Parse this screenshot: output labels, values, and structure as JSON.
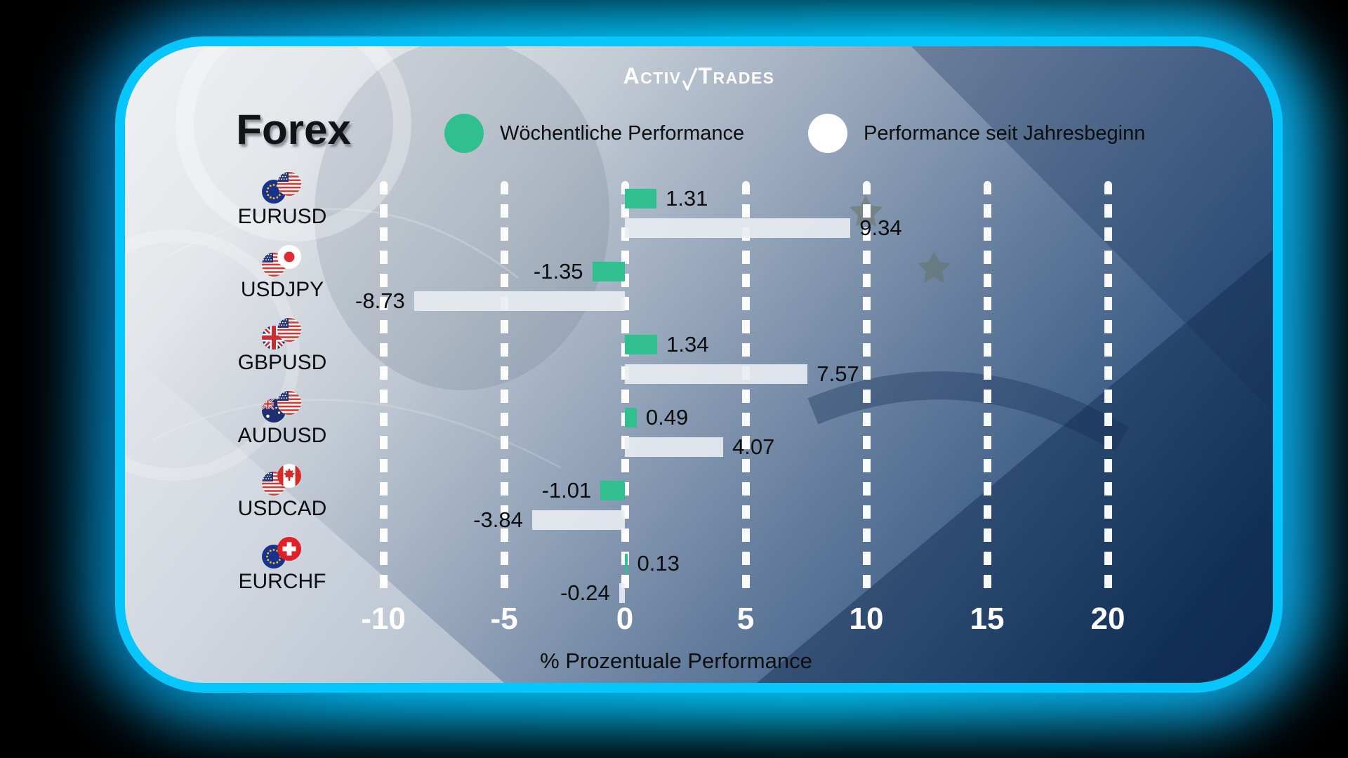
{
  "brand": {
    "word1": "ACTIV",
    "word2": "TRADES",
    "check_color": "#ffffff"
  },
  "title": "Forex",
  "legend": [
    {
      "label": "Wöchentliche Performance",
      "color": "#30bf8f"
    },
    {
      "label": "Performance seit Jahresbeginn",
      "color": "#ffffff"
    }
  ],
  "chart_data": {
    "type": "bar",
    "orientation": "horizontal",
    "title": "Forex",
    "categories": [
      "EURUSD",
      "USDJPY",
      "GBPUSD",
      "AUDUSD",
      "USDCAD",
      "EURCHF"
    ],
    "series": [
      {
        "name": "Wöchentliche Performance",
        "color": "#30bf8f",
        "values": [
          1.31,
          -1.35,
          1.34,
          0.49,
          -1.01,
          0.13
        ]
      },
      {
        "name": "Performance seit Jahresbeginn",
        "color": "#e9edf2",
        "values": [
          9.34,
          -8.73,
          7.57,
          4.07,
          -3.84,
          -0.24
        ]
      }
    ],
    "value_labels": [
      [
        "1.31",
        "-1.35",
        "1.34",
        "0.49",
        "-1.01",
        "0.13"
      ],
      [
        "9.34",
        "-8.73",
        "7.57",
        "4.07",
        "-3.84",
        "-0.24"
      ]
    ],
    "flag_pairs": [
      [
        "eu",
        "us"
      ],
      [
        "us",
        "jp"
      ],
      [
        "gb",
        "us"
      ],
      [
        "au",
        "us"
      ],
      [
        "us",
        "ca"
      ],
      [
        "eu",
        "ch"
      ]
    ],
    "xlabel": "% Prozentuale Performance",
    "x_ticks": [
      -10,
      -5,
      0,
      5,
      10,
      15,
      20
    ],
    "xlim": [
      -12.5,
      22.5
    ],
    "grid": "vertical-dashed",
    "legend_position": "top",
    "accent_border_color": "#06c6fb",
    "grid_color": "#ffffff",
    "tick_label_color": "#ffffff",
    "value_label_color": "#0b0c0e"
  }
}
